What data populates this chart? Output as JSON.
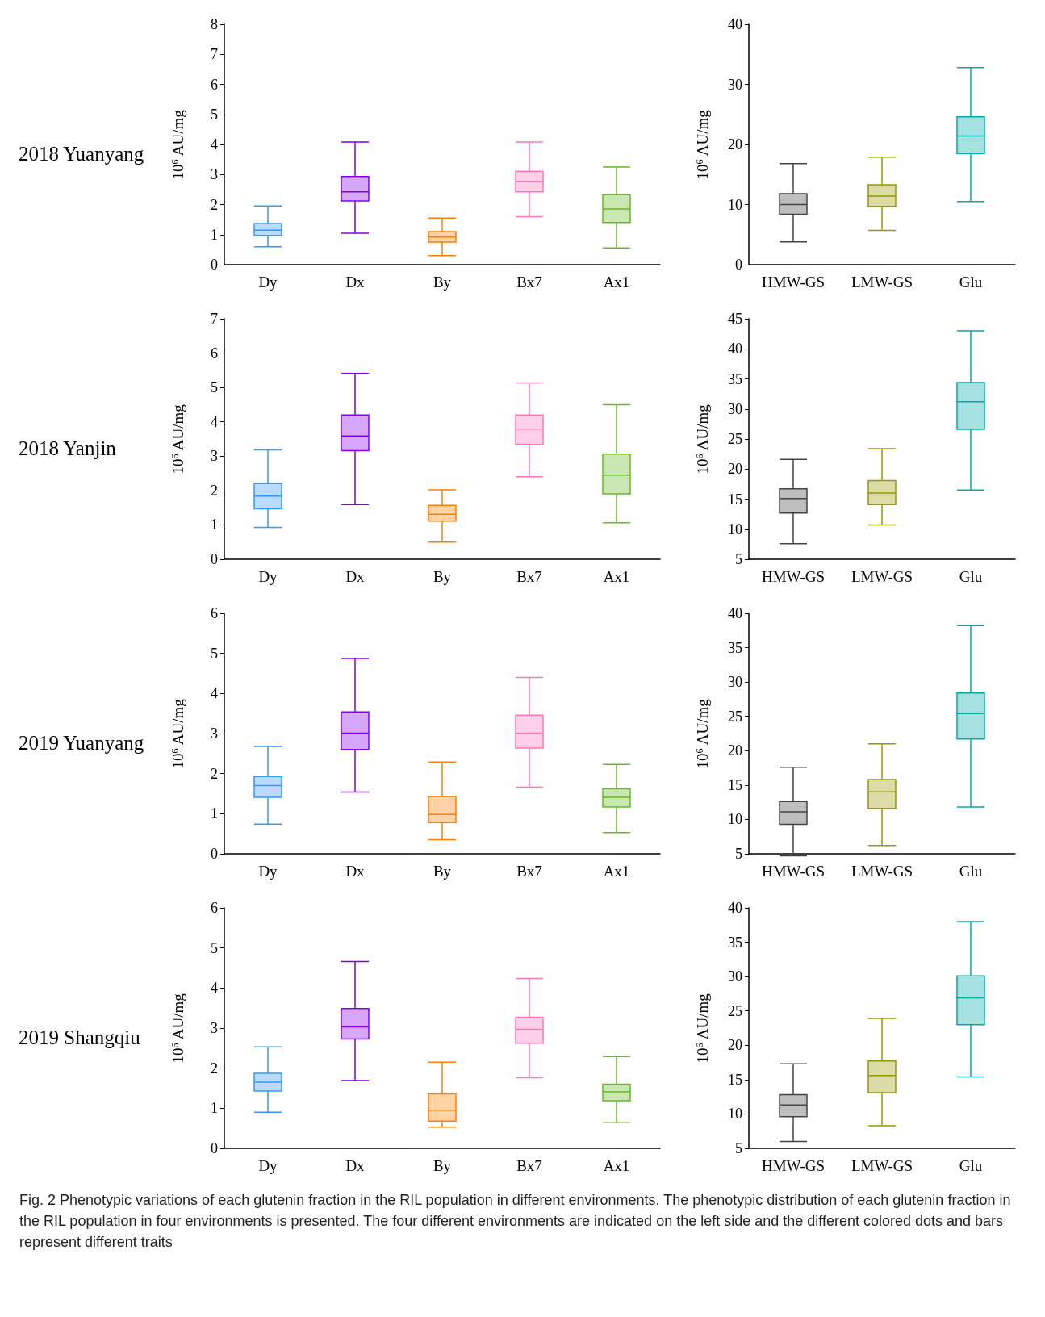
{
  "chart_data": [
    {
      "type": "box",
      "title": "2018 Yuanyang",
      "ylabel": "10$^{6}$ AU/mg",
      "categories": [
        "Dy",
        "Dx",
        "By",
        "Bx7",
        "Ax1"
      ],
      "colors": [
        "#3399ff",
        "#8800ee",
        "#ff8000",
        "#ff77bb",
        "#66bb22"
      ],
      "ylim": [
        0,
        8
      ],
      "yticks": [
        0,
        1,
        2,
        3,
        4,
        5,
        6,
        7,
        8
      ],
      "boxes": [
        {
          "low": 0.6,
          "q1": 0.97,
          "median": 1.15,
          "q3": 1.37,
          "high": 1.95
        },
        {
          "low": 1.05,
          "q1": 2.12,
          "median": 2.42,
          "q3": 2.93,
          "high": 4.08
        },
        {
          "low": 0.3,
          "q1": 0.75,
          "median": 0.92,
          "q3": 1.1,
          "high": 1.55
        },
        {
          "low": 1.6,
          "q1": 2.42,
          "median": 2.77,
          "q3": 3.11,
          "high": 4.08
        },
        {
          "low": 0.56,
          "q1": 1.4,
          "median": 1.85,
          "q3": 2.33,
          "high": 3.25
        }
      ]
    },
    {
      "type": "box",
      "ylabel": "10$^{6}$ AU/mg",
      "categories": [
        "HMW-GS",
        "LMW-GS",
        "Glu"
      ],
      "colors": [
        "#444444",
        "#999900",
        "#00aaaa"
      ],
      "ylim": [
        0,
        40
      ],
      "yticks": [
        0,
        10,
        20,
        30,
        40
      ],
      "boxes": [
        {
          "low": 3.8,
          "q1": 8.4,
          "median": 10,
          "q3": 11.8,
          "high": 16.8
        },
        {
          "low": 5.7,
          "q1": 9.7,
          "median": 11.4,
          "q3": 13.3,
          "high": 17.9
        },
        {
          "low": 10.5,
          "q1": 18.5,
          "median": 21.4,
          "q3": 24.6,
          "high": 32.8
        }
      ]
    },
    {
      "type": "box",
      "title": "2018 Yanjin",
      "ylabel": "10$^{6}$ AU/mg",
      "categories": [
        "Dy",
        "Dx",
        "By",
        "Bx7",
        "Ax1"
      ],
      "colors": [
        "#3399ff",
        "#8800ee",
        "#ff8000",
        "#ff77bb",
        "#66bb22"
      ],
      "ylim": [
        0,
        7
      ],
      "yticks": [
        0,
        1,
        2,
        3,
        4,
        5,
        6,
        7
      ],
      "boxes": [
        {
          "low": 0.93,
          "q1": 1.47,
          "median": 1.84,
          "q3": 2.2,
          "high": 3.18
        },
        {
          "low": 1.59,
          "q1": 3.16,
          "median": 3.59,
          "q3": 4.2,
          "high": 5.41
        },
        {
          "low": 0.5,
          "q1": 1.11,
          "median": 1.31,
          "q3": 1.57,
          "high": 2.02
        },
        {
          "low": 2.4,
          "q1": 3.34,
          "median": 3.79,
          "q3": 4.2,
          "high": 5.13
        },
        {
          "low": 1.06,
          "q1": 1.9,
          "median": 2.45,
          "q3": 3.06,
          "high": 4.5
        }
      ]
    },
    {
      "type": "box",
      "ylabel": "10$^{6}$ AU/mg",
      "categories": [
        "HMW-GS",
        "LMW-GS",
        "Glu"
      ],
      "colors": [
        "#444444",
        "#999900",
        "#00aaaa"
      ],
      "ylim": [
        5,
        45
      ],
      "yticks": [
        5,
        10,
        15,
        20,
        25,
        30,
        35,
        40,
        45
      ],
      "boxes": [
        {
          "low": 7.6,
          "q1": 12.7,
          "median": 15.1,
          "q3": 16.7,
          "high": 21.6
        },
        {
          "low": 10.7,
          "q1": 14.1,
          "median": 16,
          "q3": 18.1,
          "high": 23.4
        },
        {
          "low": 16.5,
          "q1": 26.6,
          "median": 31.2,
          "q3": 34.4,
          "high": 43
        }
      ]
    },
    {
      "type": "box",
      "title": "2019 Yuanyang",
      "ylabel": "10$^{6}$ AU/mg",
      "categories": [
        "Dy",
        "Dx",
        "By",
        "Bx7",
        "Ax1"
      ],
      "colors": [
        "#3399ff",
        "#8800ee",
        "#ff8000",
        "#ff77bb",
        "#66bb22"
      ],
      "ylim": [
        0,
        6
      ],
      "yticks": [
        0,
        1,
        2,
        3,
        4,
        5,
        6
      ],
      "boxes": [
        {
          "low": 0.74,
          "q1": 1.41,
          "median": 1.7,
          "q3": 1.93,
          "high": 2.68
        },
        {
          "low": 1.54,
          "q1": 2.6,
          "median": 3.01,
          "q3": 3.54,
          "high": 4.87
        },
        {
          "low": 0.35,
          "q1": 0.78,
          "median": 0.98,
          "q3": 1.43,
          "high": 2.29
        },
        {
          "low": 1.66,
          "q1": 2.64,
          "median": 3.01,
          "q3": 3.46,
          "high": 4.4
        },
        {
          "low": 0.53,
          "q1": 1.17,
          "median": 1.41,
          "q3": 1.62,
          "high": 2.23
        }
      ]
    },
    {
      "type": "box",
      "ylabel": "10$^{6}$ AU/mg",
      "categories": [
        "HMW-GS",
        "LMW-GS",
        "Glu"
      ],
      "colors": [
        "#444444",
        "#999900",
        "#00aaaa"
      ],
      "ylim": [
        5,
        40
      ],
      "yticks": [
        5,
        10,
        15,
        20,
        25,
        30,
        35,
        40
      ],
      "boxes": [
        {
          "low": 4.7,
          "q1": 9.3,
          "median": 11.1,
          "q3": 12.6,
          "high": 17.6
        },
        {
          "low": 6.2,
          "q1": 11.6,
          "median": 14,
          "q3": 15.8,
          "high": 21
        },
        {
          "low": 11.8,
          "q1": 21.7,
          "median": 25.4,
          "q3": 28.4,
          "high": 38.2
        }
      ]
    },
    {
      "type": "box",
      "title": "2019 Shangqiu",
      "ylabel": "10$^{6}$ AU/mg",
      "categories": [
        "Dy",
        "Dx",
        "By",
        "Bx7",
        "Ax1"
      ],
      "colors": [
        "#3399ff",
        "#8800ee",
        "#ff8000",
        "#ff77bb",
        "#66bb22"
      ],
      "ylim": [
        0,
        6
      ],
      "yticks": [
        0,
        1,
        2,
        3,
        4,
        5,
        6
      ],
      "boxes": [
        {
          "low": 0.9,
          "q1": 1.43,
          "median": 1.65,
          "q3": 1.87,
          "high": 2.53
        },
        {
          "low": 1.69,
          "q1": 2.73,
          "median": 3.03,
          "q3": 3.49,
          "high": 4.66
        },
        {
          "low": 0.53,
          "q1": 0.68,
          "median": 0.95,
          "q3": 1.36,
          "high": 2.15
        },
        {
          "low": 1.76,
          "q1": 2.62,
          "median": 2.97,
          "q3": 3.27,
          "high": 4.24
        },
        {
          "low": 0.64,
          "q1": 1.19,
          "median": 1.41,
          "q3": 1.6,
          "high": 2.29
        }
      ]
    },
    {
      "type": "box",
      "ylabel": "10$^{6}$ AU/mg",
      "categories": [
        "HMW-GS",
        "LMW-GS",
        "Glu"
      ],
      "colors": [
        "#444444",
        "#999900",
        "#00aaaa"
      ],
      "ylim": [
        5,
        40
      ],
      "yticks": [
        5,
        10,
        15,
        20,
        25,
        30,
        35,
        40
      ],
      "boxes": [
        {
          "low": 6,
          "q1": 9.6,
          "median": 11.3,
          "q3": 12.8,
          "high": 17.3
        },
        {
          "low": 8.3,
          "q1": 13.1,
          "median": 15.6,
          "q3": 17.7,
          "high": 23.9
        },
        {
          "low": 15.4,
          "q1": 23,
          "median": 26.9,
          "q3": 30.1,
          "high": 38
        }
      ],
      "annotations": [
        "Fig. 2  Phenotypic variations of each glutenin fraction in the RIL population in different environments. The phenotypic distribution of each glutenin fraction in the RIL population in four environments is presented. The four different environments are indicated on the left side and the different colored dots and bars represent different traits"
      ]
    }
  ]
}
